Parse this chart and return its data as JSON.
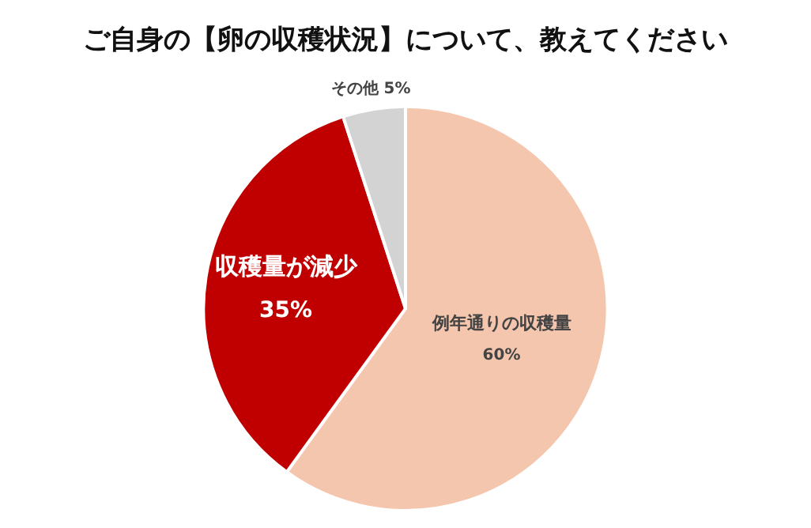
{
  "chart_data": {
    "type": "pie",
    "title": "ご自身の【卵の収穫状況】について、教えてください",
    "categories": [
      "例年通りの収穫量",
      "収穫量が減少",
      "その他"
    ],
    "values": [
      60,
      35,
      5
    ],
    "colors": [
      "#f5c6ae",
      "#c00000",
      "#d3d3d3"
    ],
    "value_labels": [
      "60%",
      "35%",
      "5%"
    ]
  }
}
